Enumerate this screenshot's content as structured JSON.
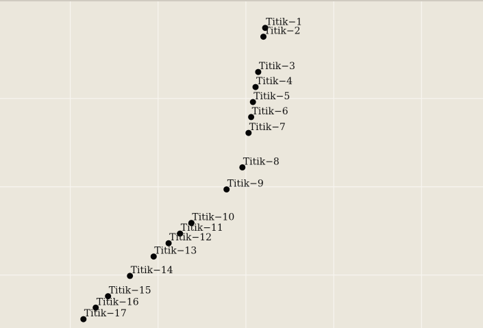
{
  "chart_data": {
    "type": "scatter",
    "title": "",
    "xlabel": "",
    "ylabel": "",
    "grid": true,
    "xlim": [
      0,
      5.5
    ],
    "ylim": [
      -18,
      0.5
    ],
    "points": [
      {
        "label": "Titik−1",
        "x": 3.02,
        "y": -1.0
      },
      {
        "label": "Titik−2",
        "x": 3.0,
        "y": -1.5
      },
      {
        "label": "Titik−3",
        "x": 2.94,
        "y": -3.5
      },
      {
        "label": "Titik−4",
        "x": 2.91,
        "y": -4.35
      },
      {
        "label": "Titik−5",
        "x": 2.88,
        "y": -5.2
      },
      {
        "label": "Titik−6",
        "x": 2.86,
        "y": -6.05
      },
      {
        "label": "Titik−7",
        "x": 2.83,
        "y": -6.95
      },
      {
        "label": "Titik−8",
        "x": 2.76,
        "y": -8.9
      },
      {
        "label": "Titik−9",
        "x": 2.58,
        "y": -10.15
      },
      {
        "label": "Titik−10",
        "x": 2.18,
        "y": -12.05
      },
      {
        "label": "Titik−11",
        "x": 2.05,
        "y": -12.65
      },
      {
        "label": "Titik−12",
        "x": 1.92,
        "y": -13.2
      },
      {
        "label": "Titik−13",
        "x": 1.75,
        "y": -13.95
      },
      {
        "label": "Titik−14",
        "x": 1.48,
        "y": -15.05
      },
      {
        "label": "Titik−15",
        "x": 1.23,
        "y": -16.2
      },
      {
        "label": "Titik−16",
        "x": 1.09,
        "y": -16.85
      },
      {
        "label": "Titik−17",
        "x": 0.95,
        "y": -17.5
      }
    ]
  }
}
